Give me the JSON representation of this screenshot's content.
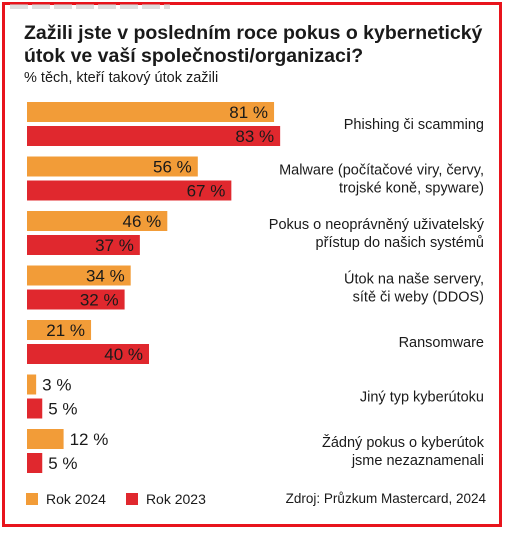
{
  "title": "Zažili jste v posledním roce pokus o kybernetický útok ve vaší společnosti/organizaci?",
  "subtitle": "% těch, kteří takový útok zažili",
  "source": "Zdroj: Průzkum Mastercard, 2024",
  "colors": {
    "rok2024": "#f29c38",
    "rok2023": "#e0282e"
  },
  "chart_data": {
    "type": "bar",
    "orientation": "horizontal",
    "categories": [
      [
        "Phishing či scamming"
      ],
      [
        "Malware (počítačové viry, červy,",
        "trojské koně, spyware)"
      ],
      [
        "Pokus o neoprávněný uživatelský",
        "přístup do našich systémů"
      ],
      [
        "Útok na naše servery,",
        "sítě či weby (DDOS)"
      ],
      [
        "Ransomware"
      ],
      [
        "Jiný typ kyberútoku"
      ],
      [
        "Žádný pokus o kyberútok",
        "jsme nezaznamenali"
      ]
    ],
    "series": [
      {
        "name": "Rok 2024",
        "values": [
          81,
          56,
          46,
          34,
          21,
          3,
          12
        ],
        "labels": [
          "81 %",
          "56 %",
          "46 %",
          "34 %",
          "21 %",
          "3 %",
          "12 %"
        ]
      },
      {
        "name": "Rok 2023",
        "values": [
          83,
          67,
          37,
          32,
          40,
          5,
          5
        ],
        "labels": [
          "83 %",
          "67 %",
          "37 %",
          "32 %",
          "40 %",
          "5 %",
          "5 %"
        ]
      }
    ],
    "legend_position": "bottom-left",
    "xlim": [
      0,
      100
    ]
  }
}
